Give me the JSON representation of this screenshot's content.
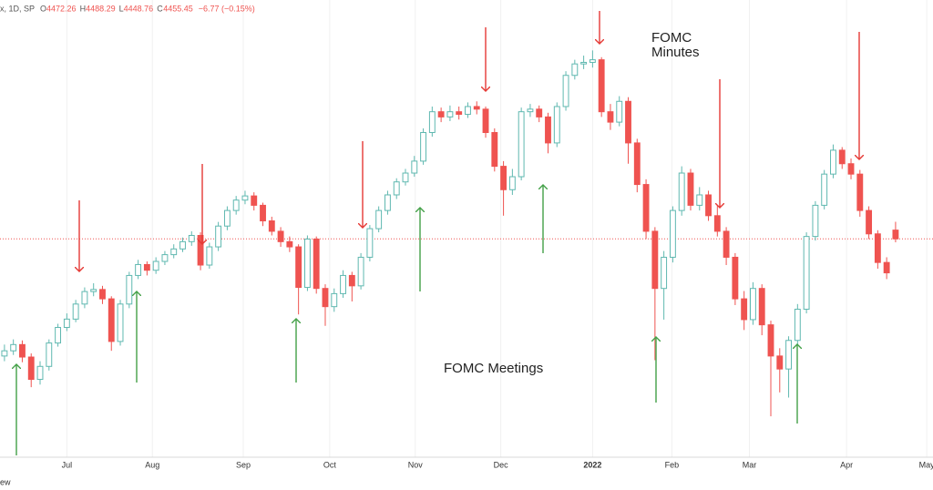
{
  "chart_data": {
    "type": "candlestick",
    "header": {
      "symbol": "x, 1D, SP",
      "ohlc": [
        {
          "key": "O",
          "value": "4472.26"
        },
        {
          "key": "H",
          "value": "4488.29"
        },
        {
          "key": "L",
          "value": "4448.76"
        },
        {
          "key": "C",
          "value": "4455.45"
        }
      ],
      "change": "−6.77 (−0.15%)"
    },
    "footer_fragment": "ew",
    "annotations": {
      "minutes": [
        "FOMC",
        "Minutes"
      ],
      "meetings": "FOMC Meetings"
    },
    "up_color": "#5fb8b0",
    "down_color": "#ef5350",
    "grid": true,
    "last_price_line": true,
    "xlim": [
      -0.5,
      104.2
    ],
    "ylim": [
      4030,
      4915
    ],
    "xticks": [
      {
        "value": 7,
        "label": "Jul"
      },
      {
        "value": 16.6,
        "label": "Aug"
      },
      {
        "value": 26.8,
        "label": "Sep"
      },
      {
        "value": 36.5,
        "label": "Oct"
      },
      {
        "value": 46.1,
        "label": "Nov"
      },
      {
        "value": 55.7,
        "label": "Dec"
      },
      {
        "value": 66,
        "label": "2022"
      },
      {
        "value": 74.9,
        "label": "Feb"
      },
      {
        "value": 83.6,
        "label": "Mar"
      },
      {
        "value": 94.5,
        "label": "Apr"
      },
      {
        "value": 103.5,
        "label": "May"
      }
    ],
    "series": {
      "open": [
        4230,
        4240,
        4252,
        4228,
        4185,
        4210,
        4255,
        4285,
        4301,
        4330,
        4354,
        4358,
        4340,
        4258,
        4330,
        4385,
        4406,
        4395,
        4412,
        4425,
        4436,
        4450,
        4462,
        4405,
        4440,
        4480,
        4510,
        4530,
        4538,
        4520,
        4490,
        4470,
        4450,
        4440,
        4362,
        4455,
        4360,
        4325,
        4350,
        4385,
        4365,
        4420,
        4475,
        4510,
        4540,
        4565,
        4582,
        4605,
        4660,
        4700,
        4690,
        4700,
        4695,
        4710,
        4705,
        4660,
        4595,
        4550,
        4575,
        4700,
        4705,
        4690,
        4640,
        4710,
        4770,
        4792,
        4795,
        4800,
        4700,
        4680,
        4720,
        4640,
        4560,
        4470,
        4360,
        4420,
        4510,
        4582,
        4520,
        4540,
        4500,
        4470,
        4420,
        4340,
        4300,
        4360,
        4290,
        4230,
        4205,
        4260,
        4320,
        4460,
        4520,
        4580,
        4626,
        4600,
        4580,
        4510,
        4465,
        4410,
        4472.26
      ],
      "high": [
        4252,
        4262,
        4260,
        4235,
        4220,
        4262,
        4292,
        4312,
        4338,
        4362,
        4370,
        4365,
        4345,
        4338,
        4392,
        4415,
        4412,
        4420,
        4432,
        4445,
        4458,
        4470,
        4468,
        4448,
        4488,
        4518,
        4538,
        4548,
        4545,
        4525,
        4498,
        4478,
        4460,
        4445,
        4462,
        4460,
        4368,
        4360,
        4395,
        4392,
        4428,
        4482,
        4518,
        4548,
        4572,
        4590,
        4615,
        4668,
        4710,
        4708,
        4712,
        4710,
        4718,
        4720,
        4710,
        4668,
        4605,
        4590,
        4708,
        4715,
        4712,
        4698,
        4718,
        4778,
        4800,
        4808,
        4818,
        4805,
        4715,
        4730,
        4728,
        4648,
        4570,
        4478,
        4432,
        4518,
        4595,
        4590,
        4555,
        4548,
        4520,
        4478,
        4428,
        4355,
        4372,
        4368,
        4298,
        4245,
        4268,
        4330,
        4468,
        4528,
        4588,
        4637,
        4632,
        4610,
        4588,
        4518,
        4472,
        4420,
        4488.29
      ],
      "low": [
        4220,
        4232,
        4218,
        4170,
        4175,
        4202,
        4248,
        4278,
        4295,
        4322,
        4345,
        4330,
        4240,
        4250,
        4322,
        4378,
        4385,
        4388,
        4405,
        4418,
        4430,
        4442,
        4395,
        4398,
        4432,
        4472,
        4502,
        4522,
        4510,
        4480,
        4462,
        4440,
        4430,
        4310,
        4355,
        4350,
        4288,
        4315,
        4342,
        4335,
        4358,
        4412,
        4468,
        4502,
        4532,
        4558,
        4575,
        4598,
        4652,
        4680,
        4682,
        4685,
        4688,
        4695,
        4650,
        4585,
        4500,
        4540,
        4568,
        4690,
        4680,
        4620,
        4632,
        4702,
        4762,
        4782,
        4785,
        4690,
        4665,
        4672,
        4600,
        4545,
        4455,
        4222,
        4300,
        4410,
        4500,
        4510,
        4510,
        4490,
        4460,
        4405,
        4328,
        4280,
        4290,
        4270,
        4114,
        4160,
        4150,
        4250,
        4312,
        4452,
        4512,
        4572,
        4590,
        4570,
        4498,
        4455,
        4398,
        4378,
        4448.76
      ],
      "close": [
        4240,
        4252,
        4228,
        4185,
        4210,
        4255,
        4285,
        4301,
        4330,
        4354,
        4358,
        4340,
        4258,
        4330,
        4385,
        4406,
        4395,
        4412,
        4425,
        4436,
        4450,
        4462,
        4405,
        4440,
        4480,
        4510,
        4530,
        4538,
        4520,
        4490,
        4470,
        4450,
        4440,
        4362,
        4455,
        4360,
        4325,
        4350,
        4385,
        4365,
        4420,
        4475,
        4510,
        4540,
        4565,
        4582,
        4605,
        4660,
        4700,
        4690,
        4700,
        4695,
        4710,
        4705,
        4660,
        4595,
        4550,
        4575,
        4700,
        4705,
        4690,
        4640,
        4710,
        4770,
        4792,
        4795,
        4800,
        4700,
        4680,
        4720,
        4640,
        4560,
        4470,
        4360,
        4420,
        4510,
        4582,
        4520,
        4540,
        4500,
        4470,
        4420,
        4340,
        4300,
        4360,
        4290,
        4230,
        4205,
        4260,
        4320,
        4460,
        4520,
        4580,
        4626,
        4600,
        4580,
        4510,
        4465,
        4410,
        4390,
        4455.45
      ]
    }
  }
}
